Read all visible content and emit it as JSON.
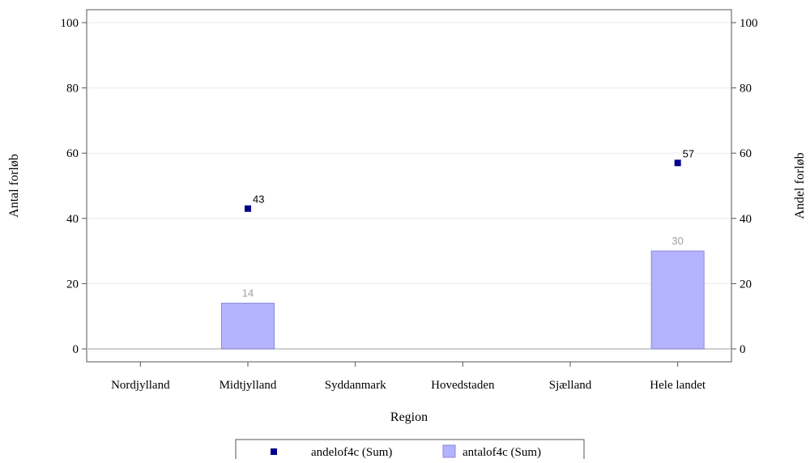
{
  "chart_data": {
    "type": "bar",
    "categories": [
      "Nordjylland",
      "Midtjylland",
      "Syddanmark",
      "Hovedstaden",
      "Sjælland",
      "Hele landet"
    ],
    "series": [
      {
        "name": "antalof4c (Sum)",
        "kind": "bar",
        "axis": "left",
        "values": [
          null,
          14,
          null,
          null,
          null,
          30
        ],
        "labels": [
          "",
          "14",
          "",
          "",
          "",
          "30"
        ],
        "color": "#b3b3ff"
      },
      {
        "name": "andelof4c (Sum)",
        "kind": "scatter",
        "axis": "right",
        "values": [
          null,
          43,
          null,
          null,
          null,
          57
        ],
        "labels": [
          "",
          "43",
          "",
          "",
          "",
          "57"
        ],
        "color": "#00008b"
      }
    ],
    "xlabel": "Region",
    "ylabel": "Antal forløb",
    "y2label": "Andel forløb",
    "ylim": [
      0,
      100
    ],
    "y2lim": [
      0,
      100
    ],
    "yticks": [
      "0",
      "20",
      "40",
      "60",
      "80",
      "100"
    ],
    "y2ticks": [
      "0",
      "20",
      "40",
      "60",
      "80",
      "100"
    ],
    "grid": true,
    "legend": "bottom",
    "colors": {
      "bar_fill": "#b3b3ff",
      "bar_stroke": "#8a8ad6",
      "marker": "#00008b",
      "data_label": "#a0a0a0"
    }
  }
}
